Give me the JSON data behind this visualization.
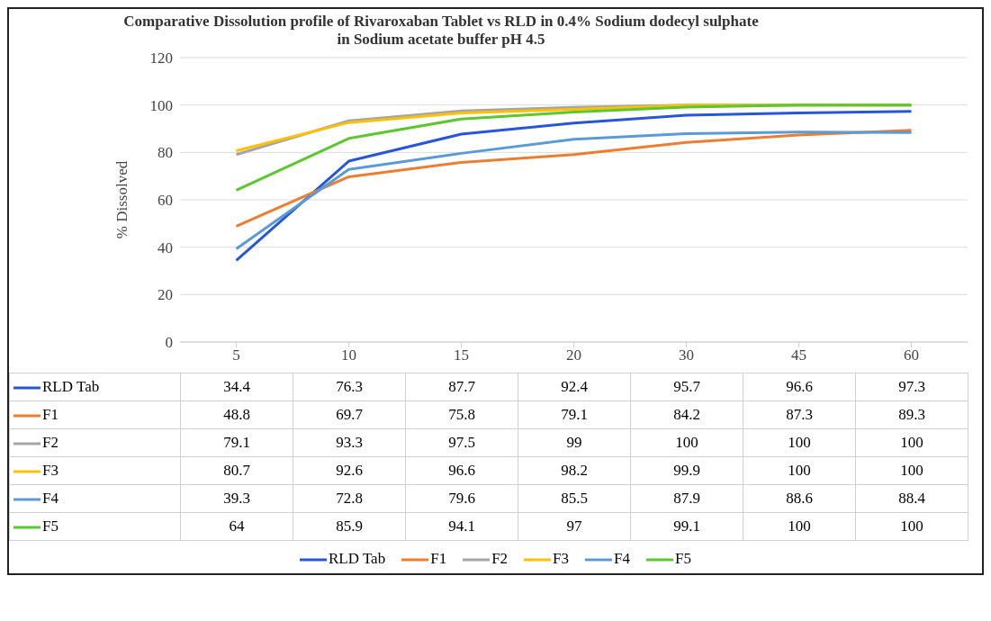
{
  "chart_data": {
    "type": "line",
    "title": "Comparative Dissolution profile of Rivaroxaban Tablet vs RLD  in 0.4% Sodium dodecyl sulphate in Sodium acetate buffer pH 4.5",
    "ylabel": "% Dissolved",
    "categories": [
      "5",
      "10",
      "15",
      "20",
      "30",
      "45",
      "60"
    ],
    "ylim": [
      0,
      120
    ],
    "yticks": [
      0,
      20,
      40,
      60,
      80,
      100,
      120
    ],
    "grid": "y",
    "legend": "bottom",
    "marker": "none",
    "line_style": "solid",
    "data_labels": true,
    "series": [
      {
        "name": "RLD Tab",
        "color": "#2757d6",
        "values": [
          34.4,
          76.3,
          87.7,
          92.4,
          95.7,
          96.6,
          97.3
        ]
      },
      {
        "name": "F1",
        "color": "#ed7d31",
        "values": [
          48.8,
          69.7,
          75.8,
          79.1,
          84.2,
          87.3,
          89.3
        ]
      },
      {
        "name": "F2",
        "color": "#a5a5a5",
        "values": [
          79.1,
          93.3,
          97.5,
          99,
          100,
          100,
          100
        ]
      },
      {
        "name": "F3",
        "color": "#ffc000",
        "values": [
          80.7,
          92.6,
          96.6,
          98.2,
          99.9,
          100,
          100
        ]
      },
      {
        "name": "F4",
        "color": "#5b9bd5",
        "values": [
          39.3,
          72.8,
          79.6,
          85.5,
          87.9,
          88.6,
          88.4
        ]
      },
      {
        "name": "F5",
        "color": "#5cc72e",
        "values": [
          64,
          85.9,
          94.1,
          97,
          99.1,
          100,
          100
        ]
      }
    ]
  }
}
